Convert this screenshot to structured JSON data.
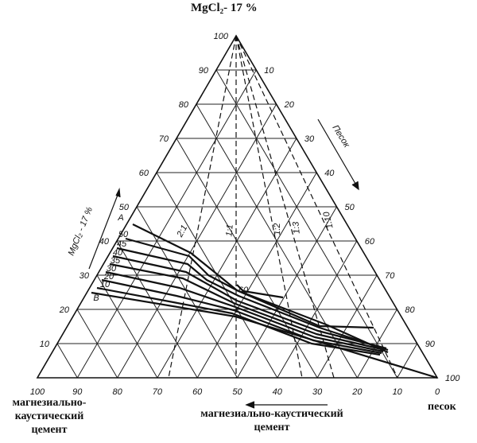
{
  "labels": {
    "top": "MgCl₂- 17 %",
    "bottom_left": [
      "магнезиально-",
      "каустический",
      "цемент"
    ],
    "bottom_center": [
      "магнезиально-каустический",
      "цемент"
    ],
    "bottom_right": "песок",
    "left_axis": "MgCl₂ - 17 %",
    "right_axis": "Песок"
  },
  "left_ticks": [
    "10",
    "20",
    "30",
    "40",
    "50",
    "60",
    "70",
    "80",
    "90",
    "100"
  ],
  "right_ticks": [
    "10",
    "20",
    "30",
    "40",
    "50",
    "60",
    "70",
    "80",
    "90",
    "100"
  ],
  "bottom_ticks": [
    "100",
    "90",
    "80",
    "70",
    "60",
    "50",
    "40",
    "30",
    "20",
    "10",
    "0"
  ],
  "ratio_labels": [
    "2:1",
    "1:1",
    "1:2",
    "1:3",
    "1:10"
  ],
  "curve_labels": [
    "A",
    "50",
    "45",
    "40",
    "35",
    "30",
    "20",
    "10",
    "B",
    "60"
  ]
}
